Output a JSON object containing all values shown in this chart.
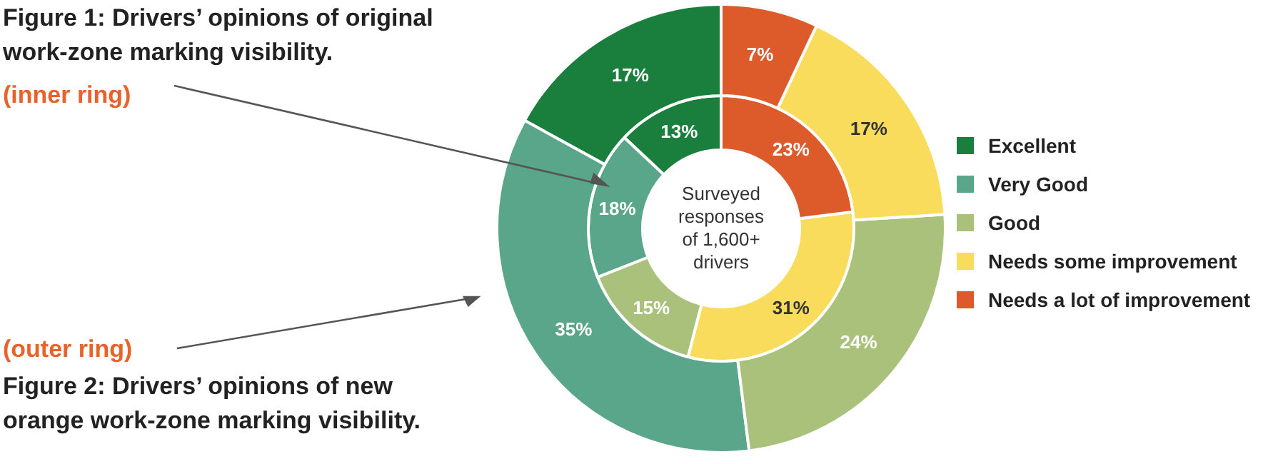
{
  "chart_data": {
    "type": "donut",
    "categories": [
      "Excellent",
      "Very Good",
      "Good",
      "Needs some improvement",
      "Needs a lot of improvement"
    ],
    "colors": [
      "#1a7f3c",
      "#5aa68a",
      "#a9c17a",
      "#f9dc5c",
      "#dd5a2b"
    ],
    "legend": "right",
    "series": [
      {
        "values": [
          13,
          18,
          15,
          31,
          23
        ],
        "value_labels": [
          "13%",
          "18%",
          "15%",
          "31%",
          "23%"
        ]
      },
      {
        "values": [
          17,
          35,
          24,
          17,
          7
        ],
        "value_labels": [
          "17%",
          "35%",
          "24%",
          "17%",
          "7%"
        ]
      }
    ],
    "annotations": [
      "Figure 1: Drivers’ opinions of original work-zone marking visibility.",
      "(inner ring)",
      "(outer ring)",
      "Figure 2: Drivers’ opinions of new orange work-zone marking visibility.",
      "Surveyed responses of 1,600+ drivers"
    ]
  }
}
